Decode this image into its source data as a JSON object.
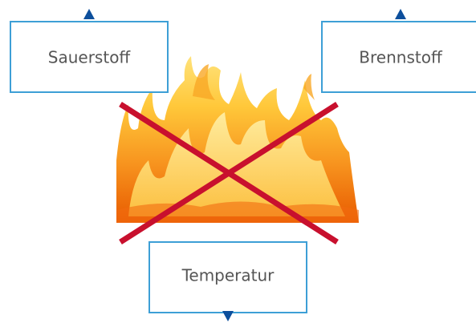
{
  "nodes": [
    {
      "label": "Sauerstoff"
    },
    {
      "label": "Brennstoff"
    },
    {
      "label": "Temperatur"
    }
  ]
}
